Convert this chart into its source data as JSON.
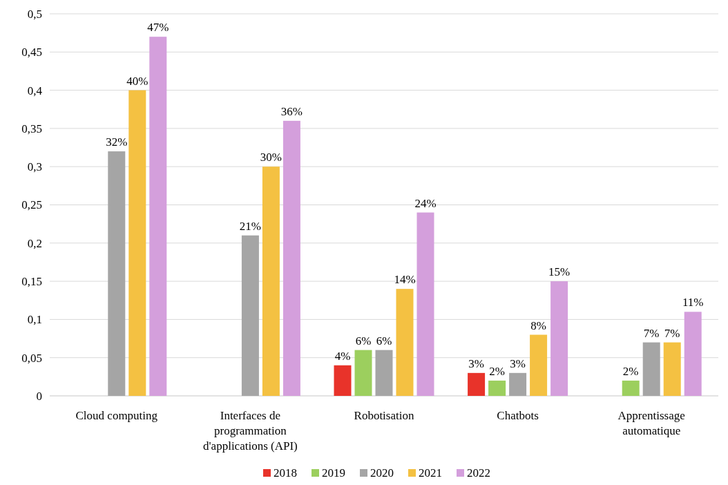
{
  "chart_data": {
    "type": "bar",
    "categories": [
      "Cloud computing",
      "Interfaces de programmation d'applications (API)",
      "Robotisation",
      "Chatbots",
      "Apprentissage automatique"
    ],
    "series": [
      {
        "name": "2018",
        "color": "#e8332a",
        "values": [
          null,
          null,
          0.04,
          0.03,
          null
        ],
        "value_labels": [
          null,
          null,
          "4%",
          "3%",
          null
        ]
      },
      {
        "name": "2019",
        "color": "#9ccf5e",
        "values": [
          null,
          null,
          0.06,
          0.02,
          0.02
        ],
        "value_labels": [
          null,
          null,
          "6%",
          "2%",
          "2%"
        ]
      },
      {
        "name": "2020",
        "color": "#a5a5a5",
        "values": [
          0.32,
          0.21,
          0.06,
          0.03,
          0.07
        ],
        "value_labels": [
          "32%",
          "21%",
          "6%",
          "3%",
          "7%"
        ]
      },
      {
        "name": "2021",
        "color": "#f4c142",
        "values": [
          0.4,
          0.3,
          0.14,
          0.08,
          0.07
        ],
        "value_labels": [
          "40%",
          "30%",
          "14%",
          "8%",
          "7%"
        ]
      },
      {
        "name": "2022",
        "color": "#d49fdc",
        "values": [
          0.47,
          0.36,
          0.24,
          0.15,
          0.11
        ],
        "value_labels": [
          "47%",
          "36%",
          "24%",
          "15%",
          "11%"
        ]
      }
    ],
    "ylim": [
      0,
      0.5
    ],
    "yticks": [
      0,
      {
        "value": 0.05,
        "label": "0,05"
      },
      {
        "value": 0.1,
        "label": "0,1"
      },
      {
        "value": 0.15,
        "label": "0,15"
      },
      {
        "value": 0.2,
        "label": "0,2"
      },
      {
        "value": 0.25,
        "label": "0,25"
      },
      {
        "value": 0.3,
        "label": "0,3"
      },
      {
        "value": 0.35,
        "label": "0,35"
      },
      {
        "value": 0.4,
        "label": "0,4"
      },
      {
        "value": 0.45,
        "label": "0,45"
      },
      {
        "value": 0.5,
        "label": "0,5"
      }
    ],
    "grid": "y",
    "legend": "bottom"
  }
}
